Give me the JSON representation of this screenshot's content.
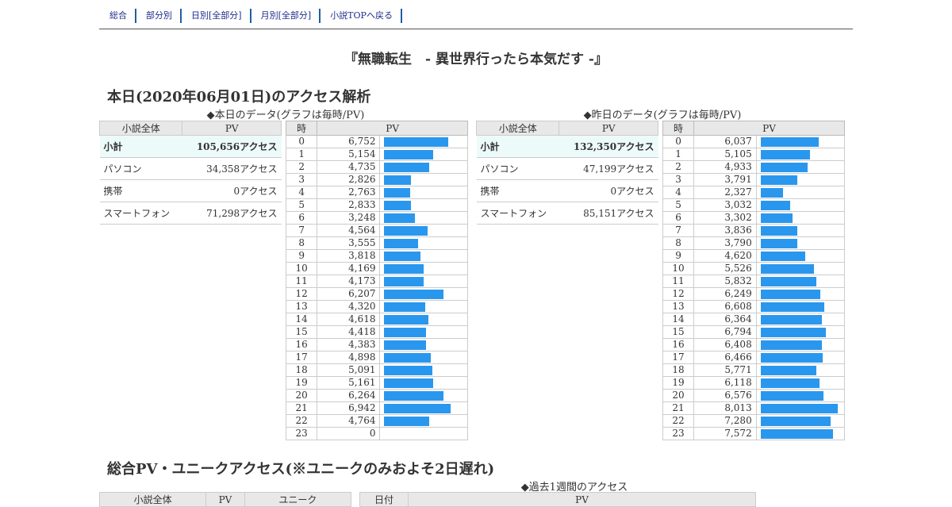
{
  "nav": [
    "総合",
    "部分別",
    "日別[全部分]",
    "月別[全部分]",
    "小説TOPへ戻る"
  ],
  "title": "『無職転生　- 異世界行ったら本気だす -』",
  "access_heading": "本日(2020年06月01日)のアクセス解析",
  "today": {
    "caption": "◆本日のデータ(グラフは毎時/PV)",
    "summary_headers": [
      "小説全体",
      "PV"
    ],
    "summary": [
      {
        "label": "小計",
        "value": "105,656アクセス"
      },
      {
        "label": "パソコン",
        "value": "34,358アクセス"
      },
      {
        "label": "携帯",
        "value": "0アクセス"
      },
      {
        "label": "スマートフォン",
        "value": "71,298アクセス"
      }
    ],
    "hourly_headers": [
      "時",
      "PV"
    ],
    "hourly": [
      "6,752",
      "5,154",
      "4,735",
      "2,826",
      "2,763",
      "2,833",
      "3,248",
      "4,564",
      "3,555",
      "3,818",
      "4,169",
      "4,173",
      "6,207",
      "4,320",
      "4,618",
      "4,418",
      "4,383",
      "4,898",
      "5,091",
      "5,161",
      "6,264",
      "6,942",
      "4,764",
      "0"
    ]
  },
  "yesterday": {
    "caption": "◆昨日のデータ(グラフは毎時/PV)",
    "summary_headers": [
      "小説全体",
      "PV"
    ],
    "summary": [
      {
        "label": "小計",
        "value": "132,350アクセス"
      },
      {
        "label": "パソコン",
        "value": "47,199アクセス"
      },
      {
        "label": "携帯",
        "value": "0アクセス"
      },
      {
        "label": "スマートフォン",
        "value": "85,151アクセス"
      }
    ],
    "hourly_headers": [
      "時",
      "PV"
    ],
    "hourly": [
      "6,037",
      "5,105",
      "4,933",
      "3,791",
      "2,327",
      "3,032",
      "3,302",
      "3,836",
      "3,790",
      "4,620",
      "5,526",
      "5,832",
      "6,249",
      "6,608",
      "6,364",
      "6,794",
      "6,408",
      "6,466",
      "5,771",
      "6,118",
      "6,576",
      "8,013",
      "7,280",
      "7,572"
    ]
  },
  "bar_max": 8300,
  "bar_color": "#2a97ee",
  "total_heading": "総合PV・ユニークアクセス(※ユニークのみおよそ2日遅れ)",
  "week_caption": "◆過去1週間のアクセス",
  "total_headers": [
    "小説全体",
    "PV",
    "ユニーク"
  ],
  "week_headers": [
    "日付",
    "PV"
  ]
}
